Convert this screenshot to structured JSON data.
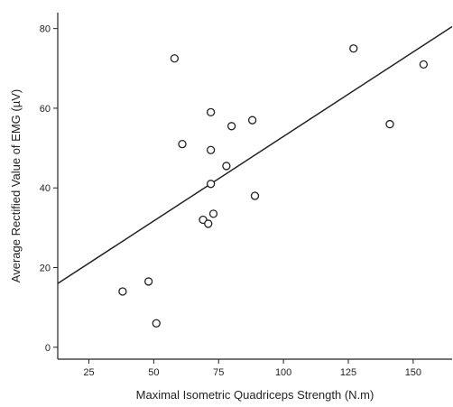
{
  "chart_data": {
    "type": "scatter",
    "title": "",
    "xlabel": "Maximal Isometric Quadriceps Strength (N.m)",
    "ylabel": "Average Rectified Value of EMG (µV)",
    "xlim": [
      13,
      165
    ],
    "ylim": [
      -3,
      84
    ],
    "x_ticks": [
      25,
      50,
      75,
      100,
      125,
      150
    ],
    "y_ticks": [
      0,
      20,
      40,
      60,
      80
    ],
    "grid": false,
    "legend": "none",
    "points": [
      {
        "x": 38,
        "y": 14
      },
      {
        "x": 48,
        "y": 16.5
      },
      {
        "x": 51,
        "y": 6
      },
      {
        "x": 58,
        "y": 72.5
      },
      {
        "x": 61,
        "y": 51
      },
      {
        "x": 69,
        "y": 32
      },
      {
        "x": 71,
        "y": 31
      },
      {
        "x": 72,
        "y": 41
      },
      {
        "x": 72,
        "y": 49.5
      },
      {
        "x": 72,
        "y": 59
      },
      {
        "x": 73,
        "y": 33.5
      },
      {
        "x": 78,
        "y": 45.5
      },
      {
        "x": 80,
        "y": 55.5
      },
      {
        "x": 88,
        "y": 57
      },
      {
        "x": 89,
        "y": 38
      },
      {
        "x": 127,
        "y": 75
      },
      {
        "x": 141,
        "y": 56
      },
      {
        "x": 154,
        "y": 71
      }
    ],
    "fit_line": {
      "x": [
        13,
        165
      ],
      "y": [
        16,
        80.5
      ]
    },
    "colors": {
      "axis": "#222222",
      "marker_stroke": "#222222",
      "marker_fill": "#ffffff",
      "fit_line": "#222222"
    }
  }
}
